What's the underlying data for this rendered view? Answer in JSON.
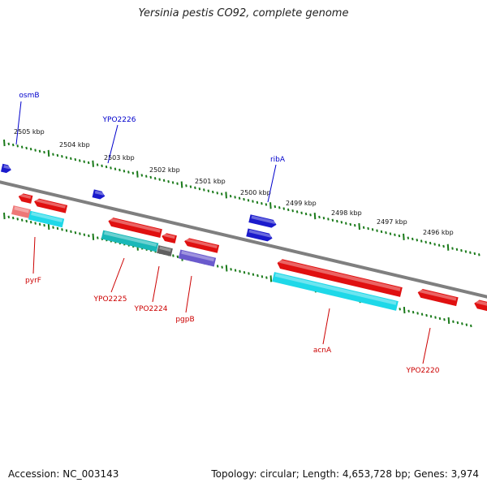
{
  "title": "Yersinia pestis CO92, complete genome",
  "accession": "Accession: NC_003143",
  "summary": "Topology: circular; Length: 4,653,728 bp; Genes: 3,974",
  "scale_labels": [
    "2505 kbp",
    "2504 kbp",
    "2503 kbp",
    "2502 kbp",
    "2501 kbp",
    "2500 kbp",
    "2499 kbp",
    "2498 kbp",
    "2497 kbp",
    "2496 kbp"
  ],
  "genes": [
    {
      "name": "osmB",
      "strand": "upper",
      "color": "#0000cc"
    },
    {
      "name": "YPO2226",
      "strand": "upper",
      "color": "#0000cc"
    },
    {
      "name": "ribA",
      "strand": "upper",
      "color": "#0000cc"
    },
    {
      "name": "pyrF",
      "strand": "lower",
      "color": "#cc0000"
    },
    {
      "name": "YPO2225",
      "strand": "lower",
      "color": "#cc0000"
    },
    {
      "name": "YPO2224",
      "strand": "lower",
      "color": "#cc0000"
    },
    {
      "name": "pgpB",
      "strand": "lower",
      "color": "#cc0000"
    },
    {
      "name": "acnA",
      "strand": "lower",
      "color": "#cc0000"
    },
    {
      "name": "YPO2220",
      "strand": "lower",
      "color": "#cc0000"
    }
  ],
  "colors": {
    "backbone": "#7f7f7f",
    "ticks": "#1a7a1a",
    "forward_gene": "#1a1acc",
    "reverse_gene": "#e01010",
    "cds_cyan": "#1ed8e8",
    "cds_teal": "#1ab8b8",
    "cds_purple": "#6a5acd",
    "cds_pink": "#ee7777",
    "cds_gray": "#606060"
  }
}
